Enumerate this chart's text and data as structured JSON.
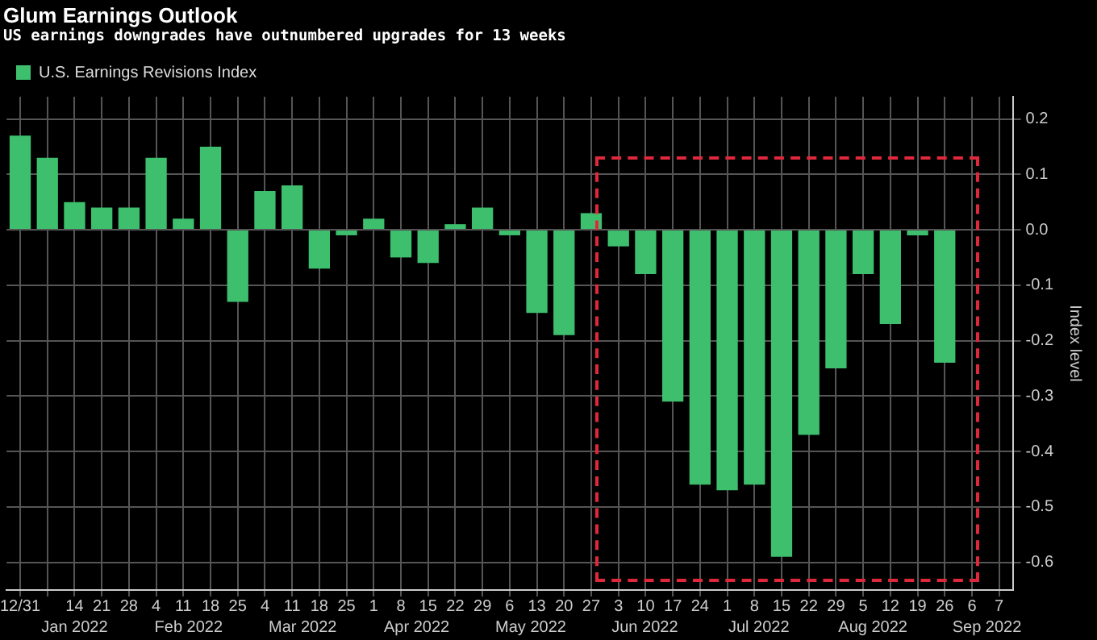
{
  "chart_data": {
    "type": "bar",
    "title": "Glum Earnings Outlook",
    "subtitle": "US earnings downgrades have outnumbered upgrades for 13 weeks",
    "ylabel": "Index level",
    "categories": [
      "12/31",
      null,
      "14",
      "21",
      "28",
      "4",
      "11",
      "18",
      "25",
      "4",
      "11",
      "18",
      "25",
      "1",
      "8",
      "15",
      "22",
      "29",
      "6",
      "13",
      "20",
      "27",
      "3",
      "10",
      "17",
      "24",
      "1",
      "8",
      "15",
      "22",
      "29",
      "5",
      "12",
      "19",
      "26",
      "6",
      "7"
    ],
    "series": [
      {
        "name": "U.S. Earnings Revisions Index",
        "color": "#3dbf6e",
        "values": [
          0.17,
          0.13,
          0.05,
          0.04,
          0.04,
          0.13,
          0.02,
          0.15,
          -0.13,
          0.07,
          0.08,
          -0.07,
          -0.01,
          0.02,
          -0.05,
          -0.06,
          0.01,
          0.04,
          -0.01,
          -0.15,
          -0.19,
          0.03,
          -0.03,
          -0.08,
          -0.31,
          -0.46,
          -0.47,
          -0.46,
          -0.59,
          -0.37,
          -0.25,
          -0.08,
          -0.17,
          -0.01,
          -0.24,
          null,
          null
        ]
      }
    ],
    "ylim": [
      -0.65,
      0.24
    ],
    "yticks": [
      0.2,
      0.1,
      {
        "value": 0,
        "label": "0.0"
      },
      -0.1,
      -0.2,
      -0.3,
      -0.4,
      -0.5,
      -0.6
    ],
    "annotations": [
      "Jan 2022",
      "Feb 2022",
      "Mar 2022",
      "Apr 2022",
      "May 2022",
      "Jun 2022",
      "Jul 2022",
      "Aug 2022",
      "Sep 2022"
    ],
    "grid": true,
    "legend": "top left"
  }
}
